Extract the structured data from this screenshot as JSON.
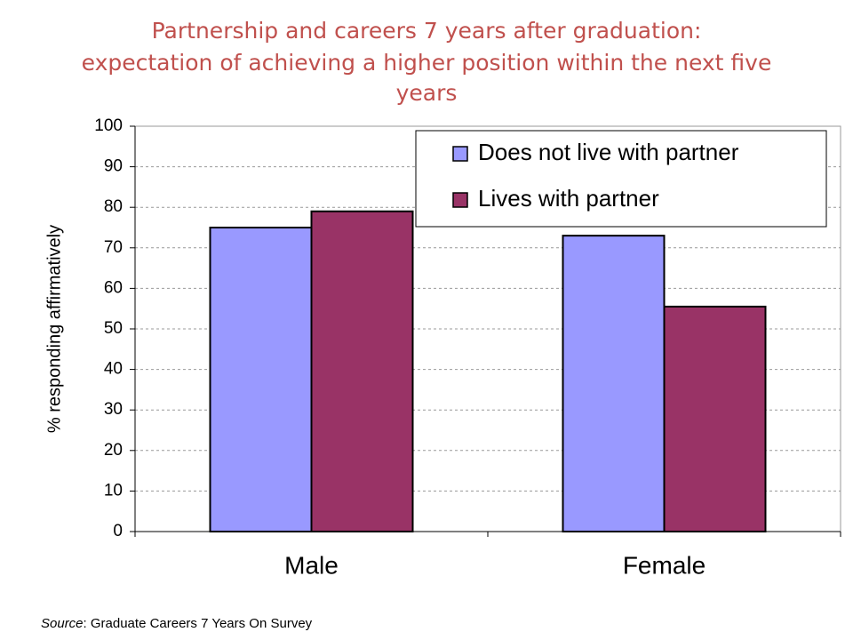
{
  "chart_data": {
    "type": "bar",
    "title": [
      "Partnership and careers 7 years after graduation:",
      "expectation of achieving a higher position within the next five",
      "years"
    ],
    "y_label": "% responding affirmatively",
    "categories": [
      "Male",
      "Female"
    ],
    "series": [
      {
        "name": "Does not live with partner",
        "color": "#9999ff",
        "values": [
          75,
          73
        ]
      },
      {
        "name": "Lives with partner",
        "color": "#993366",
        "values": [
          79,
          55.5
        ]
      }
    ],
    "ylim": [
      0,
      100
    ],
    "yticks": [
      0,
      10,
      20,
      30,
      40,
      50,
      60,
      70,
      80,
      90,
      100
    ],
    "grid": true,
    "legend": "upper-right",
    "source": {
      "label": "Source",
      "text": ": Graduate Careers 7 Years On Survey"
    }
  }
}
